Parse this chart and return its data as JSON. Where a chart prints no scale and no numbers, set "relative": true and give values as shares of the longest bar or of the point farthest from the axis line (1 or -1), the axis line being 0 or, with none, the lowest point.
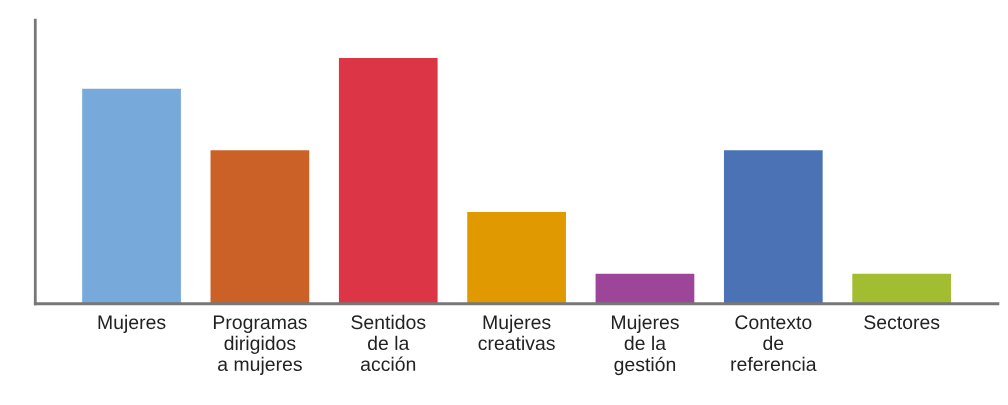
{
  "chart_data": {
    "type": "bar",
    "relative": true,
    "categories": [
      "Mujeres",
      "Programas\ndirigidos\na mujeres",
      "Sentidos\nde la\nacción",
      "Mujeres\ncreativas",
      "Mujeres\nde la\ngestión",
      "Contexto\nde\nreferencia",
      "Sectores"
    ],
    "values": [
      0.875,
      0.625,
      1,
      0.375,
      0.125,
      0.625,
      0.125
    ],
    "colors": [
      "#77aadb",
      "#cc6128",
      "#dc3545",
      "#e09a00",
      "#9c4599",
      "#4a72b4",
      "#a3bd30"
    ],
    "grid": false,
    "legend": false
  }
}
